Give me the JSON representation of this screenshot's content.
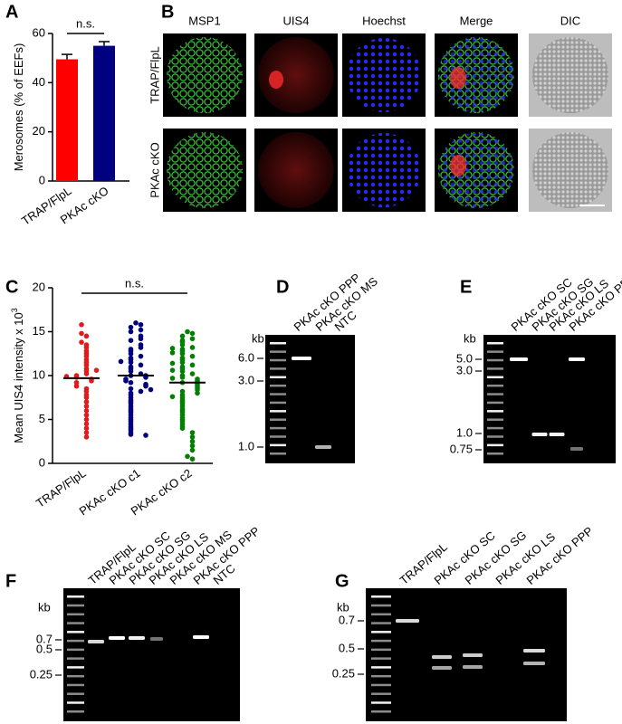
{
  "panel_letters": [
    "A",
    "B",
    "C",
    "D",
    "E",
    "F",
    "G"
  ],
  "chart_data": [
    {
      "type": "bar",
      "ylabel": "Merosomes (% of EEFs)",
      "categories": [
        "TRAP/FlpL",
        "PKAc cKO"
      ],
      "values": [
        49.5,
        55
      ],
      "errors": [
        2,
        1.7
      ],
      "colors": [
        "#ff0000",
        "#000080"
      ],
      "ylim": [
        0,
        60
      ],
      "yticks": [
        0,
        20,
        40,
        60
      ],
      "annotation": "n.s."
    },
    {
      "type": "dot",
      "ylabel": "Mean UIS4 intensity x 10",
      "ylabel_exponent": "3",
      "categories": [
        "TRAP/FlpL",
        "PKAc cKO c1",
        "PKAc cKO c2"
      ],
      "colors": [
        "#e31a1c",
        "#00007f",
        "#008000"
      ],
      "values": [
        [
          15.8,
          14.8,
          14.5,
          13.8,
          13.5,
          13.2,
          12.8,
          12.5,
          12.2,
          11.8,
          11.5,
          11.2,
          10.8,
          10.5,
          10.2,
          10,
          9.8,
          9.6,
          9.4,
          9.2,
          8.8,
          8.5,
          8.2,
          7.8,
          7.5,
          7,
          6.5,
          6,
          5.5,
          5,
          4.5,
          4,
          3.5,
          3,
          10.6,
          9.9
        ],
        [
          16,
          15.8,
          15.5,
          15.2,
          15,
          14.5,
          14.2,
          14,
          13.5,
          13.2,
          13,
          12.8,
          12.5,
          12.2,
          12,
          11.8,
          11.5,
          11.2,
          11,
          10.8,
          10.5,
          10.2,
          10,
          10,
          9.8,
          9.6,
          9.4,
          9.2,
          9,
          8.8,
          8.5,
          8.2,
          8,
          7.8,
          7.5,
          7.2,
          7,
          6.8,
          6.5,
          6.2,
          6,
          5.8,
          5.5,
          5.2,
          5,
          4.8,
          4.5,
          4.2,
          4,
          3.8,
          3.5,
          3.3,
          3.2,
          11.6,
          8.4
        ],
        [
          15,
          14.8,
          14.5,
          14.2,
          14,
          13.8,
          13.5,
          13.2,
          13,
          12.8,
          12.5,
          12.2,
          12,
          11.8,
          11.5,
          11.2,
          11,
          10.8,
          10.5,
          10.2,
          10,
          9.8,
          9.6,
          9.4,
          9.2,
          9,
          8.8,
          8.6,
          8.4,
          8.2,
          8,
          7.8,
          7.5,
          7.2,
          7,
          6.8,
          6.5,
          6.2,
          6,
          5.8,
          5.5,
          5.2,
          5,
          4.8,
          4.5,
          4.2,
          4,
          3.5,
          3,
          2.5,
          2,
          1.5,
          0.8,
          0.5,
          12.6,
          9.7,
          7.6,
          10.6,
          11.4,
          13.1
        ]
      ],
      "means": [
        9.7,
        10,
        9.2
      ],
      "ylim": [
        0,
        20
      ],
      "yticks": [
        0,
        5,
        10,
        15,
        20
      ],
      "annotation": "n.s."
    }
  ],
  "images": {
    "columns": [
      "MSP1",
      "UIS4",
      "Hoechst",
      "Merge",
      "DIC"
    ],
    "rows": [
      "TRAP/FlpL",
      "PKAc cKO"
    ]
  },
  "gels": [
    {
      "unit": "kb",
      "lanes": [
        "PKAc cKO PPP",
        "PKAc cKO MS",
        "NTC"
      ],
      "markers": [
        "6.0",
        "3.0",
        "1.0"
      ]
    },
    {
      "unit": "kb",
      "lanes": [
        "PKAc cKO SC",
        "PKAc cKO SG",
        "PKAc cKO LS",
        "PKAc cKO PPP"
      ],
      "markers": [
        "5.0",
        "3.0",
        "1.0",
        "0.75"
      ]
    },
    {
      "unit": "kb",
      "lanes": [
        "TRAP/FlpL",
        "PKAc cKO SC",
        "PKAc cKO SG",
        "PKAc cKO LS",
        "PKAc cKO MS",
        "PKAc cKO PPP",
        "NTC"
      ],
      "markers": [
        "0.7",
        "0.5",
        "0.25"
      ]
    },
    {
      "unit": "kb",
      "lanes": [
        "TRAP/FlpL",
        "PKAc cKO SC",
        "PKAc cKO SG",
        "PKAc cKO LS",
        "PKAc cKO PPP"
      ],
      "markers": [
        "0.7",
        "0.5",
        "0.25"
      ]
    }
  ]
}
